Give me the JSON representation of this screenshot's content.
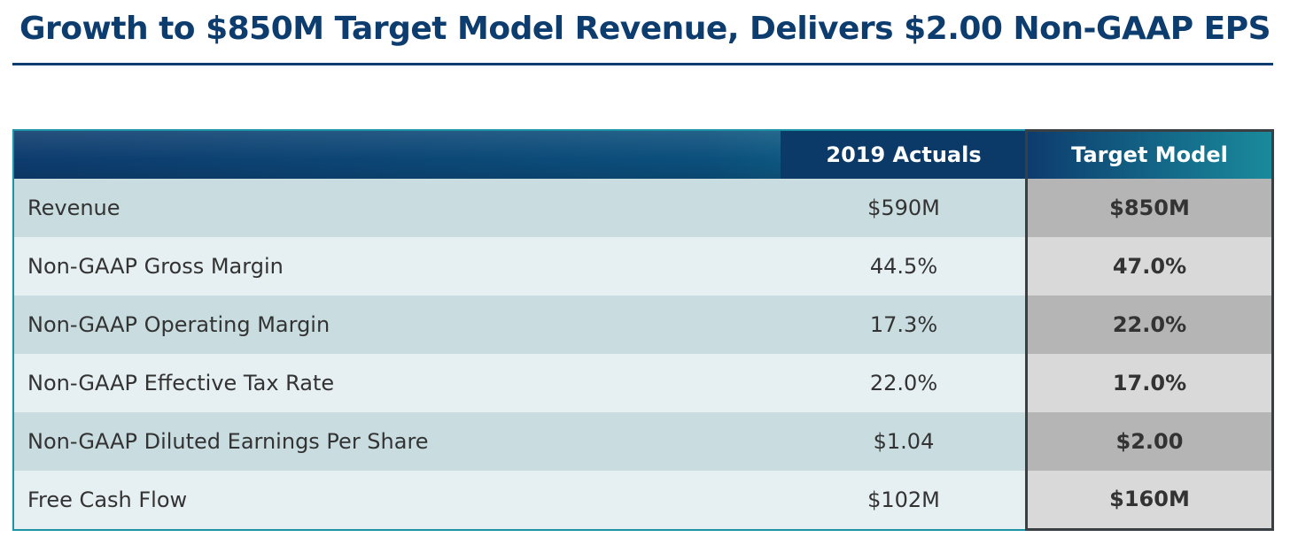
{
  "title": "Growth to $850M Target Model Revenue, Delivers $2.00 Non-GAAP EPS",
  "table": {
    "headers": {
      "metric": "",
      "actuals": "2019 Actuals",
      "target": "Target Model"
    },
    "rows": [
      {
        "metric": "Revenue",
        "actual": "$590M",
        "target": "$850M"
      },
      {
        "metric": "Non-GAAP Gross Margin",
        "actual": "44.5%",
        "target": "47.0%"
      },
      {
        "metric": "Non-GAAP Operating Margin",
        "actual": "17.3%",
        "target": "22.0%"
      },
      {
        "metric": "Non-GAAP Effective Tax Rate",
        "actual": "22.0%",
        "target": "17.0%"
      },
      {
        "metric": "Non-GAAP Diluted Earnings Per Share",
        "actual": "$1.04",
        "target": "$2.00"
      },
      {
        "metric": "Free Cash Flow",
        "actual": "$102M",
        "target": "$160M"
      }
    ]
  },
  "colors": {
    "title": "#0d3c6e",
    "header_dark": "#0d3c6e",
    "header_teal": "#1a8a9c",
    "row_dark": "#c9dde1",
    "row_light": "#e6eff1",
    "target_dark": "#b5b5b5",
    "target_light": "#d9d9d9"
  }
}
